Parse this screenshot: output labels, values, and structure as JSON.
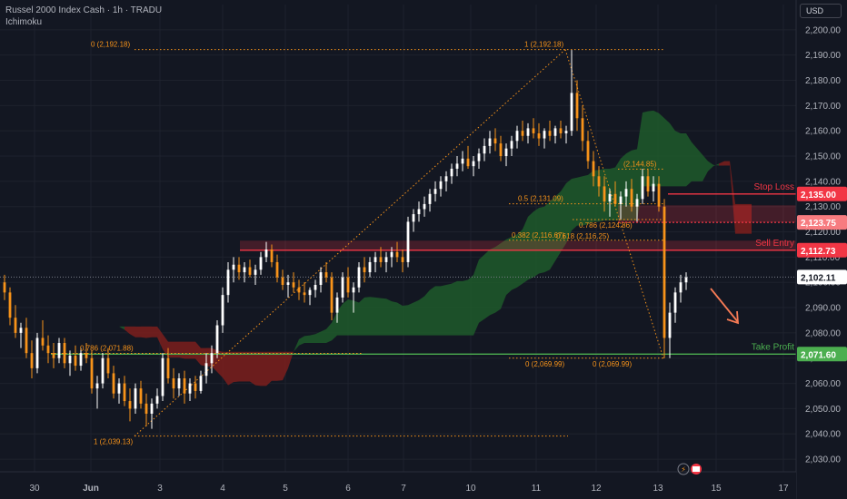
{
  "header": {
    "title": "Russel 2000 Index Cash · 1h · TRADU",
    "indicator": "Ichimoku"
  },
  "currency_button": "USD",
  "colors": {
    "background": "#131722",
    "candle_up": "#ffffff",
    "candle_down": "#f7931a",
    "cloud_bull": "#1e5a2a",
    "cloud_bear": "#7d1e1c",
    "fib": "#f7931a",
    "stop_loss": "#f23645",
    "sell_entry": "#f23645",
    "take_profit": "#4caf50",
    "axis_text": "#b2b5be"
  },
  "chart_data": {
    "type": "candlestick",
    "y_axis": {
      "ylim": [
        2025,
        2210
      ],
      "ticks": [
        "2,200.00",
        "2,190.00",
        "2,180.00",
        "2,170.00",
        "2,160.00",
        "2,150.00",
        "2,140.00",
        "2,130.00",
        "2,120.00",
        "2,110.00",
        "2,100.00",
        "2,090.00",
        "2,080.00",
        "2,070.00",
        "2,060.00",
        "2,050.00",
        "2,040.00",
        "2,030.00"
      ]
    },
    "x_axis": {
      "ticks": [
        "30",
        "Jun",
        "3",
        "4",
        "5",
        "6",
        "7",
        "10",
        "11",
        "12",
        "13",
        "15",
        "17"
      ]
    },
    "price_labels": [
      {
        "name": "stop-loss",
        "label": "Stop Loss",
        "value": 2135.0,
        "text": "2,135.00"
      },
      {
        "name": "entry-zone-top",
        "value": 2123.75,
        "text": "2,123.75"
      },
      {
        "name": "sell-entry",
        "label": "Sell Entry",
        "value": 2112.73,
        "text": "2,112.73"
      },
      {
        "name": "current-price",
        "value": 2102.11,
        "text": "2,102.11"
      },
      {
        "name": "take-profit",
        "label": "Take Profit",
        "value": 2071.6,
        "text": "2,071.60"
      }
    ],
    "fib_labels": [
      {
        "text": "0 (2,192.18)",
        "value": 2192.18
      },
      {
        "text": "1 (2,192.18)",
        "value": 2192.18
      },
      {
        "text": "0.786 (2,071.88)",
        "value": 2071.88
      },
      {
        "text": "1 (2,039.13)",
        "value": 2039.13
      },
      {
        "text": "0 (2,069.99)",
        "value": 2069.99
      },
      {
        "text": "0 (2,069.99)",
        "value": 2069.99
      },
      {
        "text": "0.5 (2,131.09)",
        "value": 2131.09
      },
      {
        "text": "0.786 (2,124.86)",
        "value": 2124.86
      },
      {
        "text": "0.382 (2,116.67)",
        "value": 2116.67
      },
      {
        "text": "0.618 (2,116.25)",
        "value": 2116.25
      },
      {
        "text": "(2,144.85)",
        "value": 2144.85
      }
    ],
    "candles": [
      [
        2100,
        2103,
        2093,
        2096
      ],
      [
        2096,
        2098,
        2083,
        2086
      ],
      [
        2086,
        2091,
        2078,
        2080
      ],
      [
        2080,
        2084,
        2074,
        2082
      ],
      [
        2082,
        2086,
        2070,
        2072
      ],
      [
        2072,
        2077,
        2062,
        2066
      ],
      [
        2066,
        2080,
        2064,
        2078
      ],
      [
        2078,
        2085,
        2073,
        2075
      ],
      [
        2075,
        2079,
        2068,
        2072
      ],
      [
        2072,
        2076,
        2066,
        2070
      ],
      [
        2070,
        2078,
        2068,
        2076
      ],
      [
        2076,
        2078,
        2066,
        2068
      ],
      [
        2068,
        2073,
        2063,
        2071
      ],
      [
        2071,
        2075,
        2065,
        2067
      ],
      [
        2067,
        2074,
        2065,
        2072
      ],
      [
        2072,
        2076,
        2068,
        2070
      ],
      [
        2070,
        2073,
        2056,
        2058
      ],
      [
        2058,
        2063,
        2050,
        2060
      ],
      [
        2060,
        2072,
        2058,
        2070
      ],
      [
        2070,
        2074,
        2062,
        2064
      ],
      [
        2064,
        2067,
        2054,
        2056
      ],
      [
        2056,
        2062,
        2052,
        2060
      ],
      [
        2060,
        2063,
        2051,
        2053
      ],
      [
        2053,
        2058,
        2045,
        2050
      ],
      [
        2050,
        2060,
        2048,
        2058
      ],
      [
        2058,
        2061,
        2050,
        2052
      ],
      [
        2052,
        2056,
        2043,
        2048
      ],
      [
        2048,
        2054,
        2042,
        2052
      ],
      [
        2052,
        2058,
        2050,
        2055
      ],
      [
        2055,
        2072,
        2053,
        2070
      ],
      [
        2070,
        2074,
        2060,
        2062
      ],
      [
        2062,
        2066,
        2054,
        2058
      ],
      [
        2058,
        2064,
        2055,
        2062
      ],
      [
        2062,
        2065,
        2052,
        2056
      ],
      [
        2056,
        2062,
        2053,
        2060
      ],
      [
        2060,
        2063,
        2054,
        2057
      ],
      [
        2057,
        2065,
        2056,
        2063
      ],
      [
        2063,
        2072,
        2060,
        2068
      ],
      [
        2068,
        2075,
        2064,
        2072
      ],
      [
        2072,
        2085,
        2070,
        2083
      ],
      [
        2083,
        2098,
        2080,
        2095
      ],
      [
        2095,
        2108,
        2092,
        2105
      ],
      [
        2105,
        2110,
        2100,
        2107
      ],
      [
        2107,
        2110,
        2101,
        2104
      ],
      [
        2104,
        2108,
        2100,
        2106
      ],
      [
        2106,
        2109,
        2102,
        2103
      ],
      [
        2103,
        2107,
        2099,
        2105
      ],
      [
        2105,
        2112,
        2103,
        2110
      ],
      [
        2110,
        2116,
        2108,
        2113
      ],
      [
        2113,
        2115,
        2106,
        2108
      ],
      [
        2108,
        2111,
        2100,
        2102
      ],
      [
        2102,
        2105,
        2097,
        2099
      ],
      [
        2099,
        2103,
        2094,
        2100
      ],
      [
        2100,
        2104,
        2096,
        2098
      ],
      [
        2098,
        2101,
        2093,
        2096
      ],
      [
        2096,
        2100,
        2092,
        2095
      ],
      [
        2095,
        2098,
        2091,
        2097
      ],
      [
        2097,
        2101,
        2094,
        2099
      ],
      [
        2099,
        2106,
        2096,
        2104
      ],
      [
        2104,
        2108,
        2100,
        2102
      ],
      [
        2102,
        2104,
        2085,
        2088
      ],
      [
        2088,
        2096,
        2084,
        2094
      ],
      [
        2094,
        2104,
        2092,
        2102
      ],
      [
        2102,
        2106,
        2094,
        2096
      ],
      [
        2096,
        2100,
        2088,
        2098
      ],
      [
        2098,
        2108,
        2096,
        2106
      ],
      [
        2106,
        2110,
        2100,
        2104
      ],
      [
        2104,
        2110,
        2102,
        2108
      ],
      [
        2108,
        2112,
        2104,
        2110
      ],
      [
        2110,
        2114,
        2106,
        2108
      ],
      [
        2108,
        2112,
        2104,
        2110
      ],
      [
        2110,
        2114,
        2106,
        2112
      ],
      [
        2112,
        2116,
        2108,
        2110
      ],
      [
        2110,
        2113,
        2104,
        2108
      ],
      [
        2108,
        2126,
        2106,
        2124
      ],
      [
        2124,
        2129,
        2120,
        2127
      ],
      [
        2127,
        2132,
        2124,
        2129
      ],
      [
        2129,
        2134,
        2126,
        2131
      ],
      [
        2131,
        2137,
        2128,
        2135
      ],
      [
        2135,
        2140,
        2132,
        2137
      ],
      [
        2137,
        2142,
        2134,
        2140
      ],
      [
        2140,
        2144,
        2136,
        2142
      ],
      [
        2142,
        2147,
        2139,
        2145
      ],
      [
        2145,
        2150,
        2142,
        2147
      ],
      [
        2147,
        2152,
        2144,
        2149
      ],
      [
        2149,
        2154,
        2145,
        2146
      ],
      [
        2146,
        2150,
        2142,
        2148
      ],
      [
        2148,
        2153,
        2145,
        2151
      ],
      [
        2151,
        2157,
        2148,
        2154
      ],
      [
        2154,
        2160,
        2151,
        2157
      ],
      [
        2157,
        2161,
        2152,
        2155
      ],
      [
        2155,
        2158,
        2148,
        2150
      ],
      [
        2150,
        2155,
        2146,
        2153
      ],
      [
        2153,
        2158,
        2150,
        2156
      ],
      [
        2156,
        2162,
        2153,
        2160
      ],
      [
        2160,
        2164,
        2156,
        2158
      ],
      [
        2158,
        2163,
        2155,
        2161
      ],
      [
        2161,
        2165,
        2157,
        2159
      ],
      [
        2159,
        2163,
        2154,
        2157
      ],
      [
        2157,
        2161,
        2153,
        2160
      ],
      [
        2160,
        2164,
        2156,
        2158
      ],
      [
        2158,
        2162,
        2155,
        2161
      ],
      [
        2161,
        2164,
        2157,
        2159
      ],
      [
        2159,
        2162,
        2155,
        2160
      ],
      [
        2160,
        2192,
        2158,
        2175
      ],
      [
        2175,
        2180,
        2160,
        2165
      ],
      [
        2165,
        2170,
        2152,
        2156
      ],
      [
        2156,
        2160,
        2145,
        2148
      ],
      [
        2148,
        2152,
        2138,
        2142
      ],
      [
        2142,
        2146,
        2134,
        2138
      ],
      [
        2138,
        2142,
        2128,
        2132
      ],
      [
        2132,
        2137,
        2126,
        2135
      ],
      [
        2135,
        2140,
        2130,
        2131
      ],
      [
        2131,
        2136,
        2125,
        2134
      ],
      [
        2134,
        2140,
        2130,
        2137
      ],
      [
        2137,
        2141,
        2128,
        2130
      ],
      [
        2130,
        2135,
        2124,
        2133
      ],
      [
        2133,
        2145,
        2131,
        2142
      ],
      [
        2142,
        2145,
        2134,
        2136
      ],
      [
        2136,
        2142,
        2132,
        2139
      ],
      [
        2139,
        2142,
        2128,
        2130
      ],
      [
        2130,
        2133,
        2070,
        2078
      ],
      [
        2078,
        2092,
        2070,
        2088
      ],
      [
        2088,
        2098,
        2084,
        2096
      ],
      [
        2096,
        2103,
        2092,
        2100
      ],
      [
        2100,
        2104,
        2097,
        2102
      ]
    ]
  }
}
